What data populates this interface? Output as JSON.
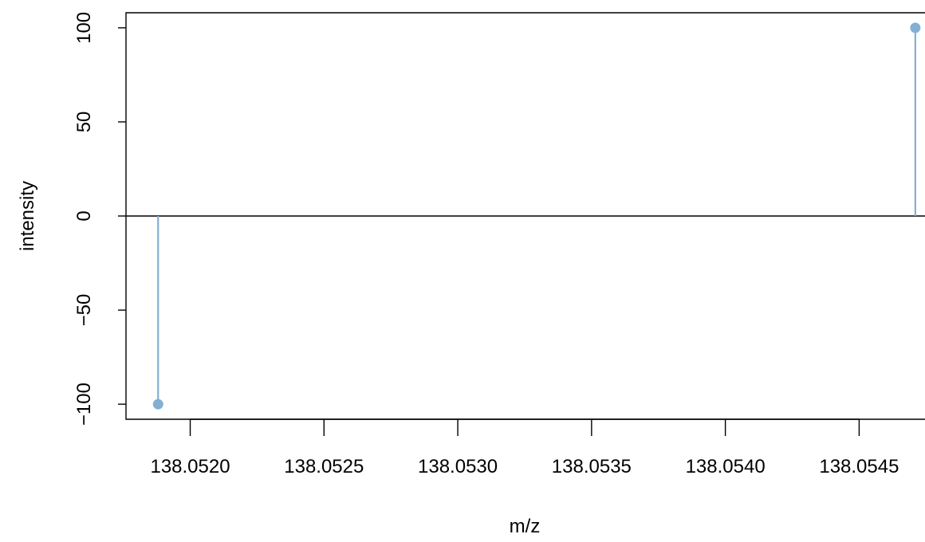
{
  "chart_data": {
    "type": "scatter",
    "title": "",
    "xlabel": "m/z",
    "ylabel": "intensity",
    "xlim": [
      138.05176,
      138.05477
    ],
    "ylim": [
      -108,
      108
    ],
    "x_ticks": [
      "138.0520",
      "138.0525",
      "138.0530",
      "138.0535",
      "138.0540",
      "138.0545"
    ],
    "x_tick_values": [
      138.052,
      138.0525,
      138.053,
      138.0535,
      138.054,
      138.0545
    ],
    "y_ticks": [
      "100",
      "50",
      "0",
      "−50",
      "−100"
    ],
    "y_tick_values": [
      100,
      50,
      0,
      -50,
      -100
    ],
    "grid": false,
    "zero_line": true,
    "marker_color": "#84afd3",
    "series": [
      {
        "style": "stem",
        "points": [
          {
            "x": 138.05188,
            "y": -100
          },
          {
            "x": 138.05471,
            "y": 100
          }
        ]
      }
    ]
  }
}
